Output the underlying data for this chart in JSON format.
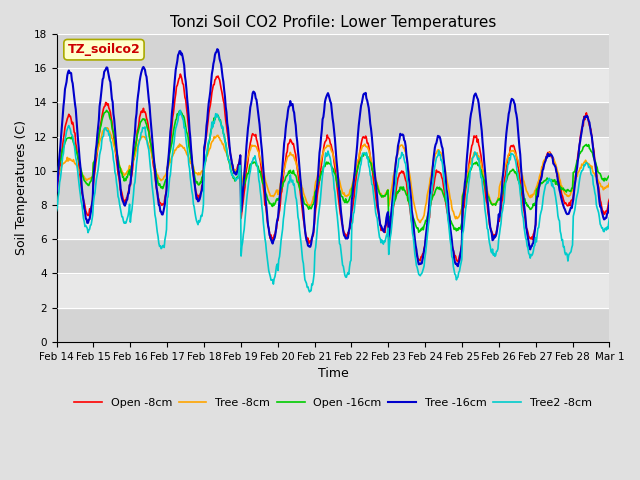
{
  "title": "Tonzi Soil CO2 Profile: Lower Temperatures",
  "xlabel": "Time",
  "ylabel": "Soil Temperatures (C)",
  "ylim": [
    0,
    18
  ],
  "xlim": [
    0,
    15
  ],
  "x_tick_labels": [
    "Feb 14",
    "Feb 15",
    "Feb 16",
    "Feb 17",
    "Feb 18",
    "Feb 19",
    "Feb 20",
    "Feb 21",
    "Feb 22",
    "Feb 23",
    "Feb 24",
    "Feb 25",
    "Feb 26",
    "Feb 27",
    "Feb 28",
    "Mar 1"
  ],
  "series_order": [
    "Open -8cm",
    "Tree -8cm",
    "Open -16cm",
    "Tree -16cm",
    "Tree2 -8cm"
  ],
  "colors": {
    "Open -8cm": "#ff0000",
    "Tree -8cm": "#ffa500",
    "Open -16cm": "#00cc00",
    "Tree -16cm": "#0000cc",
    "Tree2 -8cm": "#00cccc"
  },
  "linewidths": {
    "Open -8cm": 1.2,
    "Tree -8cm": 1.2,
    "Open -16cm": 1.2,
    "Tree -16cm": 1.5,
    "Tree2 -8cm": 1.2
  },
  "watermark": "TZ_soilco2",
  "watermark_color": "#cc0000",
  "watermark_bg": "#ffffcc",
  "bg_color": "#e0e0e0",
  "plot_bg": "#ebebeb",
  "title_fontsize": 11,
  "label_fontsize": 9,
  "tick_fontsize": 7.5
}
